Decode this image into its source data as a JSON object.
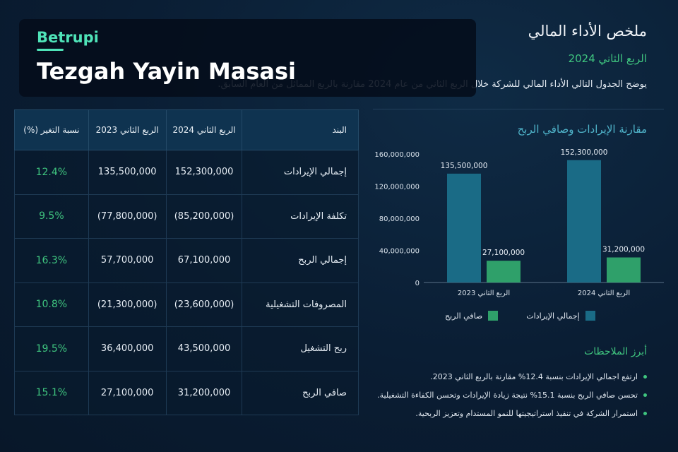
{
  "brand": {
    "name": "Betrupi",
    "title": "Tezgah Yayin Masasi"
  },
  "header": {
    "title": "ملخص الأداء المالي",
    "subtitle": "الربع الثاني 2024",
    "description": "يوضح الجدول التالي الأداء المالي للشركة خلال الربع الثاني من عام 2024 مقارنة بالربع المماثل من العام السابق."
  },
  "table": {
    "headers": [
      "البند",
      "الربع الثاني 2024",
      "الربع الثاني 2023",
      "نسبة التغير (%)"
    ],
    "rows": [
      {
        "item": "إجمالي الإيرادات",
        "q2_2024": "152,300,000",
        "q2_2023": "135,500,000",
        "change": "12.4%"
      },
      {
        "item": "تكلفة الإيرادات",
        "q2_2024": "(85,200,000)",
        "q2_2023": "(77,800,000)",
        "change": "9.5%"
      },
      {
        "item": "إجمالي الربح",
        "q2_2024": "67,100,000",
        "q2_2023": "57,700,000",
        "change": "16.3%"
      },
      {
        "item": "المصروفات التشغيلية",
        "q2_2024": "(23,600,000)",
        "q2_2023": "(21,300,000)",
        "change": "10.8%"
      },
      {
        "item": "ربح التشغيل",
        "q2_2024": "43,500,000",
        "q2_2023": "36,400,000",
        "change": "19.5%"
      },
      {
        "item": "صافي الربح",
        "q2_2024": "31,200,000",
        "q2_2023": "27,100,000",
        "change": "15.1%"
      }
    ]
  },
  "chart_data": {
    "type": "bar",
    "title": "مقارنة الإيرادات وصافي الربح",
    "categories": [
      "الربع الثاني 2023",
      "الربع الثاني 2024"
    ],
    "series": [
      {
        "name": "إجمالي الإيرادات",
        "values": [
          135500000,
          152300000
        ],
        "labels": [
          "135,500,000",
          "152,300,000"
        ],
        "color": "#1a6b86"
      },
      {
        "name": "صافي الربح",
        "values": [
          27100000,
          31200000
        ],
        "labels": [
          "27,100,000",
          "31,200,000"
        ],
        "color": "#2fa06a"
      }
    ],
    "yticks": [
      "0",
      "40,000,000",
      "80,000,000",
      "120,000,000",
      "160,000,000"
    ],
    "ylim": [
      0,
      160000000
    ]
  },
  "notes": {
    "title": "أبرز الملاحظات",
    "items": [
      "ارتفع اجمالي الإيرادات بنسبة 12.4% مقارنة بالربع الثاني 2023.",
      "تحسن صافي الربح بنسبة 15.1% نتيجة زيادة الإيرادات وتحسن الكفاءة التشغيلية.",
      "استمرار الشركة في تنفيذ استراتيجيتها للنمو المستدام وتعزيز الربحية."
    ]
  },
  "colors": {
    "accent_green": "#3fc57f",
    "accent_teal": "#4fe3b8",
    "revenue_bar": "#1a6b86",
    "profit_bar": "#2fa06a"
  }
}
